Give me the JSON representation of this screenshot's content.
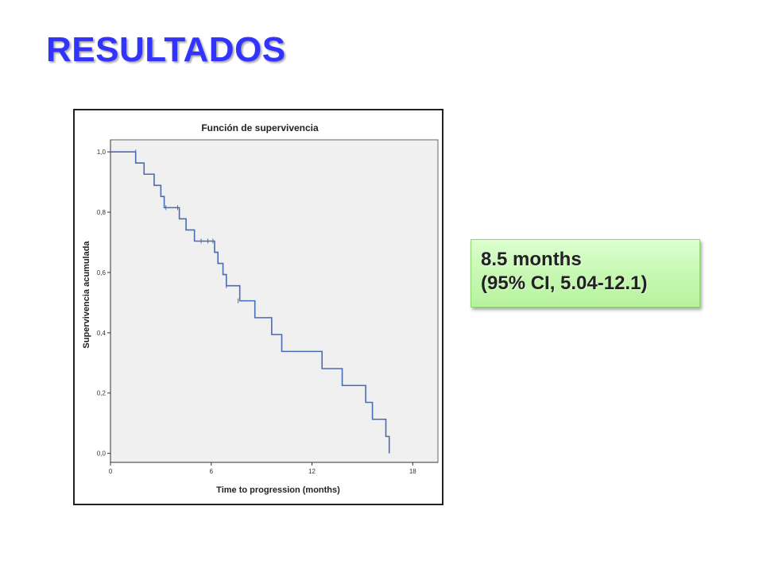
{
  "slide": {
    "title": "RESULTADOS"
  },
  "result_box": {
    "line1": "8.5 months",
    "line2": "(95% CI, 5.04-12.1)",
    "background": "#c3f7ae"
  },
  "chart_data": {
    "type": "line",
    "subtype": "kaplan-meier-step",
    "title": "Función de supervivencia",
    "xlabel": "Time to progression (months)",
    "ylabel": "Supervivencia acumulada",
    "xlim": [
      0,
      19.5
    ],
    "ylim": [
      -0.03,
      1.04
    ],
    "x_ticks": [
      0,
      6,
      12,
      18
    ],
    "x_tick_labels": [
      "0",
      "6",
      "12",
      "18"
    ],
    "y_ticks": [
      0,
      0.2,
      0.4,
      0.6,
      0.8,
      1.0
    ],
    "y_tick_labels": [
      "0,0",
      "0,2",
      "0,4",
      "0,6",
      "0,8",
      "1,0"
    ],
    "grid": false,
    "legend": "none",
    "line_color": "#4a6cb3",
    "plot_background": "#f0f0f0",
    "series": [
      {
        "steps": [
          [
            0,
            1.0
          ],
          [
            1.5,
            0.963
          ],
          [
            2.0,
            0.926
          ],
          [
            2.6,
            0.889
          ],
          [
            3.0,
            0.852
          ],
          [
            3.2,
            0.815
          ],
          [
            4.1,
            0.778
          ],
          [
            4.5,
            0.741
          ],
          [
            5.0,
            0.704
          ],
          [
            6.2,
            0.667
          ],
          [
            6.4,
            0.63
          ],
          [
            6.7,
            0.593
          ],
          [
            6.9,
            0.556
          ],
          [
            7.7,
            0.506
          ],
          [
            8.6,
            0.45
          ],
          [
            9.6,
            0.394
          ],
          [
            10.2,
            0.338
          ],
          [
            12.6,
            0.281
          ],
          [
            13.8,
            0.225
          ],
          [
            15.2,
            0.169
          ],
          [
            15.6,
            0.113
          ],
          [
            16.4,
            0.056
          ],
          [
            16.6,
            0.0
          ]
        ],
        "censored": [
          [
            1.5,
            1.0
          ],
          [
            3.3,
            0.815
          ],
          [
            4.0,
            0.815
          ],
          [
            5.4,
            0.704
          ],
          [
            5.8,
            0.704
          ],
          [
            6.1,
            0.704
          ],
          [
            6.9,
            0.556
          ],
          [
            7.6,
            0.506
          ]
        ]
      }
    ]
  }
}
